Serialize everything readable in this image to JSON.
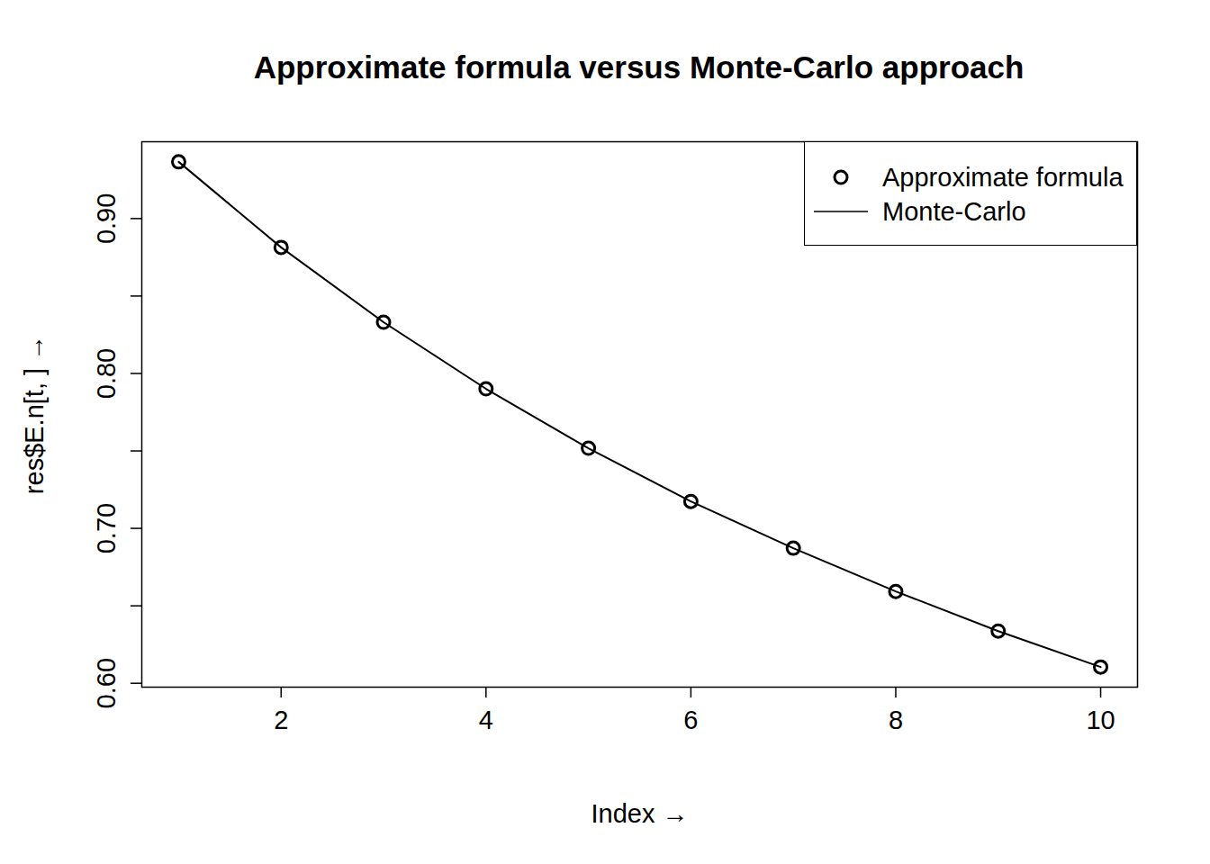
{
  "chart_data": {
    "type": "line",
    "title": "Approximate formula versus Monte-Carlo approach",
    "x_label": "Index",
    "y_label": "res$E.n[t, ]",
    "x": [
      1,
      2,
      3,
      4,
      5,
      6,
      7,
      8,
      9,
      10
    ],
    "series": [
      {
        "name": "Approximate formula",
        "type": "scatter",
        "marker": "circle",
        "color": "#000000",
        "values": [
          0.9366,
          0.8814,
          0.8331,
          0.7901,
          0.7517,
          0.7174,
          0.6872,
          0.6593,
          0.6337,
          0.6105
        ]
      },
      {
        "name": "Monte-Carlo",
        "type": "line",
        "line_style": "solid",
        "color": "#000000",
        "values": [
          0.9366,
          0.8814,
          0.8331,
          0.7901,
          0.7517,
          0.7174,
          0.6872,
          0.6593,
          0.6337,
          0.6105
        ]
      }
    ],
    "xlim": [
      0.64,
      10.36
    ],
    "ylim": [
      0.5975,
      0.9496
    ],
    "xticks": [
      2,
      4,
      6,
      8,
      10
    ],
    "yticks": [
      {
        "value": 0.6,
        "label": "0.60"
      },
      {
        "value": 0.65,
        "label": null
      },
      {
        "value": 0.7,
        "label": "0.70"
      },
      {
        "value": 0.75,
        "label": null
      },
      {
        "value": 0.8,
        "label": "0.80"
      },
      {
        "value": 0.85,
        "label": null
      },
      {
        "value": 0.9,
        "label": "0.90"
      }
    ],
    "legend": "top-right"
  }
}
